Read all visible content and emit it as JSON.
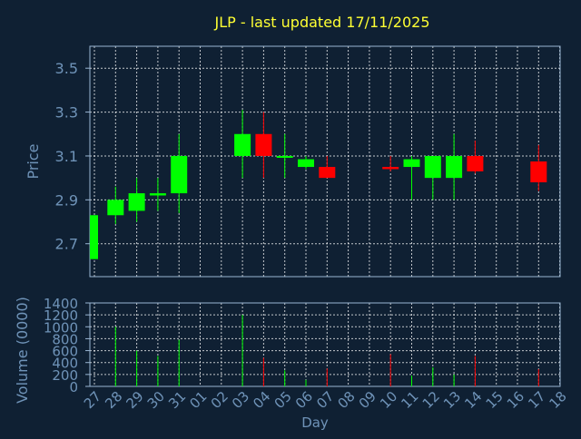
{
  "title": "JLP - last updated 17/11/2025",
  "colors": {
    "background": "#0f2033",
    "frame": "#9ab6d3",
    "axis_text": "#6f93b8",
    "title": "#ffff33",
    "grid": "#ffffff",
    "up": "#00ff00",
    "down": "#ff0000"
  },
  "chart_data": [
    {
      "type": "candlestick",
      "ylabel": "Price",
      "ylim": [
        2.55,
        3.6
      ],
      "yticks": [
        "2.7",
        "2.9",
        "3.1",
        "3.3",
        "3.5"
      ],
      "grid": true,
      "x_categories": [
        "27",
        "28",
        "29",
        "30",
        "31",
        "01",
        "02",
        "03",
        "04",
        "05",
        "06",
        "07",
        "08",
        "09",
        "10",
        "11",
        "12",
        "13",
        "14",
        "15",
        "16",
        "17",
        "18"
      ],
      "candles": [
        {
          "day": "27",
          "open": 2.63,
          "high": 2.83,
          "low": 2.63,
          "close": 2.83,
          "dir": "up"
        },
        {
          "day": "28",
          "open": 2.83,
          "high": 2.96,
          "low": 2.79,
          "close": 2.9,
          "dir": "up"
        },
        {
          "day": "29",
          "open": 2.85,
          "high": 3.0,
          "low": 2.8,
          "close": 2.93,
          "dir": "up"
        },
        {
          "day": "30",
          "open": 2.92,
          "high": 3.0,
          "low": 2.85,
          "close": 2.93,
          "dir": "up"
        },
        {
          "day": "31",
          "open": 2.93,
          "high": 3.2,
          "low": 2.84,
          "close": 3.1,
          "dir": "up"
        },
        {
          "day": "03",
          "open": 3.1,
          "high": 3.31,
          "low": 3.0,
          "close": 3.2,
          "dir": "up"
        },
        {
          "day": "04",
          "open": 3.2,
          "high": 3.3,
          "low": 3.0,
          "close": 3.1,
          "dir": "down"
        },
        {
          "day": "05",
          "open": 3.1,
          "high": 3.2,
          "low": 3.0,
          "close": 3.1,
          "dir": "up"
        },
        {
          "day": "06",
          "open": 3.05,
          "high": 3.1,
          "low": 3.04,
          "close": 3.085,
          "dir": "up"
        },
        {
          "day": "07",
          "open": 3.05,
          "high": 3.1,
          "low": 3.0,
          "close": 3.0,
          "dir": "down"
        },
        {
          "day": "10",
          "open": 3.05,
          "high": 3.1,
          "low": 3.03,
          "close": 3.04,
          "dir": "down"
        },
        {
          "day": "11",
          "open": 3.05,
          "high": 3.1,
          "low": 2.9,
          "close": 3.085,
          "dir": "up"
        },
        {
          "day": "12",
          "open": 3.0,
          "high": 3.1,
          "low": 2.9,
          "close": 3.1,
          "dir": "up"
        },
        {
          "day": "13",
          "open": 3.0,
          "high": 3.2,
          "low": 2.9,
          "close": 3.1,
          "dir": "up"
        },
        {
          "day": "14",
          "open": 3.1,
          "high": 3.17,
          "low": 3.02,
          "close": 3.03,
          "dir": "down"
        },
        {
          "day": "17",
          "open": 3.075,
          "high": 3.15,
          "low": 2.94,
          "close": 2.98,
          "dir": "down"
        }
      ]
    },
    {
      "type": "bar",
      "ylabel": "Volume (0000)",
      "xlabel": "Day",
      "ylim": [
        0,
        1400
      ],
      "yticks": [
        "0",
        "200",
        "400",
        "600",
        "800",
        "1000",
        "1200",
        "1400"
      ],
      "grid": true,
      "categories": [
        "27",
        "28",
        "29",
        "30",
        "31",
        "01",
        "02",
        "03",
        "04",
        "05",
        "06",
        "07",
        "08",
        "09",
        "10",
        "11",
        "12",
        "13",
        "14",
        "15",
        "16",
        "17",
        "18"
      ],
      "bars": [
        {
          "day": "28",
          "value": 1000,
          "dir": "up"
        },
        {
          "day": "29",
          "value": 600,
          "dir": "up"
        },
        {
          "day": "30",
          "value": 510,
          "dir": "up"
        },
        {
          "day": "31",
          "value": 780,
          "dir": "up"
        },
        {
          "day": "03",
          "value": 1200,
          "dir": "up"
        },
        {
          "day": "04",
          "value": 480,
          "dir": "down"
        },
        {
          "day": "05",
          "value": 270,
          "dir": "up"
        },
        {
          "day": "06",
          "value": 110,
          "dir": "up"
        },
        {
          "day": "07",
          "value": 300,
          "dir": "down"
        },
        {
          "day": "10",
          "value": 540,
          "dir": "down"
        },
        {
          "day": "11",
          "value": 180,
          "dir": "up"
        },
        {
          "day": "12",
          "value": 320,
          "dir": "up"
        },
        {
          "day": "13",
          "value": 200,
          "dir": "up"
        },
        {
          "day": "14",
          "value": 510,
          "dir": "down"
        },
        {
          "day": "17",
          "value": 290,
          "dir": "down"
        }
      ]
    }
  ]
}
